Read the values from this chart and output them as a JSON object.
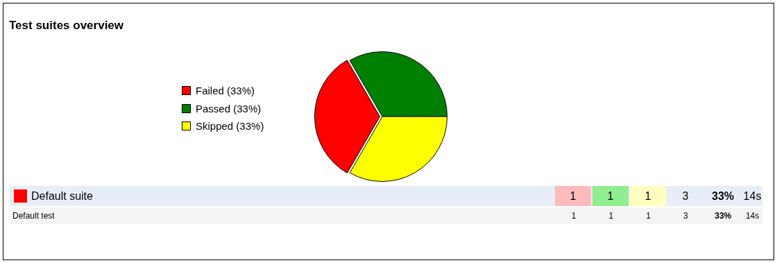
{
  "chart_data": [
    {
      "type": "pie",
      "title": "Test suites overview",
      "categories": [
        "Failed (33%)",
        "Passed (33%)",
        "Skipped (33%)"
      ],
      "values": [
        33.33,
        33.33,
        33.34
      ],
      "colors": [
        "#ff0000",
        "#008000",
        "#ffff00"
      ],
      "legend": "left"
    },
    {
      "type": "other",
      "annotations": [
        "Default suite",
        "1",
        "1",
        "1",
        "3",
        "33%",
        "14s",
        "Default test",
        "1",
        "1",
        "1",
        "3",
        "33%",
        "14s"
      ]
    }
  ]
}
